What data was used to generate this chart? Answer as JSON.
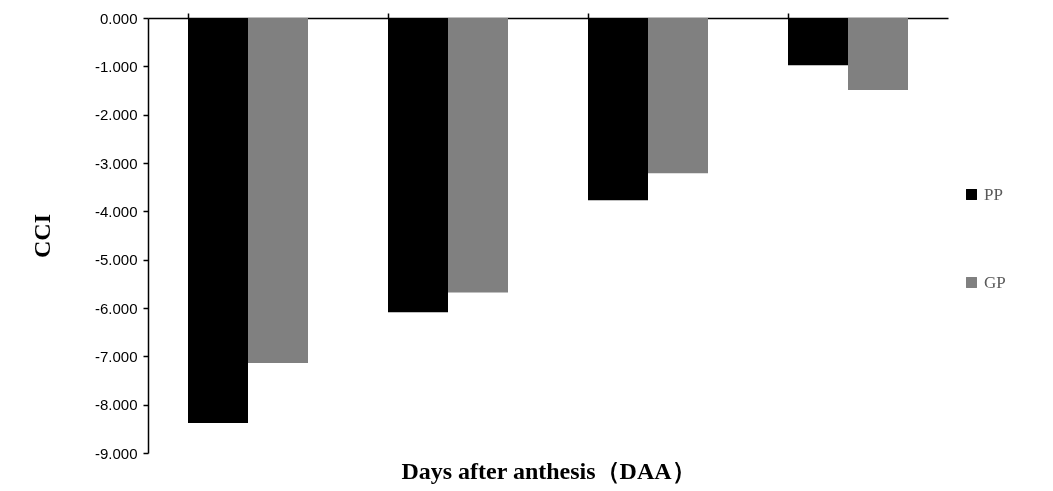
{
  "chart_data": {
    "type": "bar",
    "xlabel": "Days after anthesis（DAA）",
    "ylabel": "CCI",
    "categories": [
      null,
      null,
      null,
      null
    ],
    "series": [
      {
        "name": "PP",
        "color": "#000000",
        "values": [
          -8.38,
          -6.09,
          -3.77,
          -0.98
        ]
      },
      {
        "name": "GP",
        "color": "#808080",
        "values": [
          -7.14,
          -5.68,
          -3.21,
          -1.49
        ]
      }
    ],
    "ylim": [
      -9,
      0
    ],
    "yticks": [
      {
        "value": 0,
        "label": "0.000"
      },
      {
        "value": -1,
        "label": "-1.000"
      },
      {
        "value": -2,
        "label": "-2.000"
      },
      {
        "value": -3,
        "label": "-3.000"
      },
      {
        "value": -4,
        "label": "-4.000"
      },
      {
        "value": -5,
        "label": "-5.000"
      },
      {
        "value": -6,
        "label": "-6.000"
      },
      {
        "value": -7,
        "label": "-7.000"
      },
      {
        "value": -8,
        "label": "-8.000"
      },
      {
        "value": -9,
        "label": "-9.000"
      }
    ],
    "legend": "right",
    "grid": false,
    "tick_labels": "y"
  }
}
